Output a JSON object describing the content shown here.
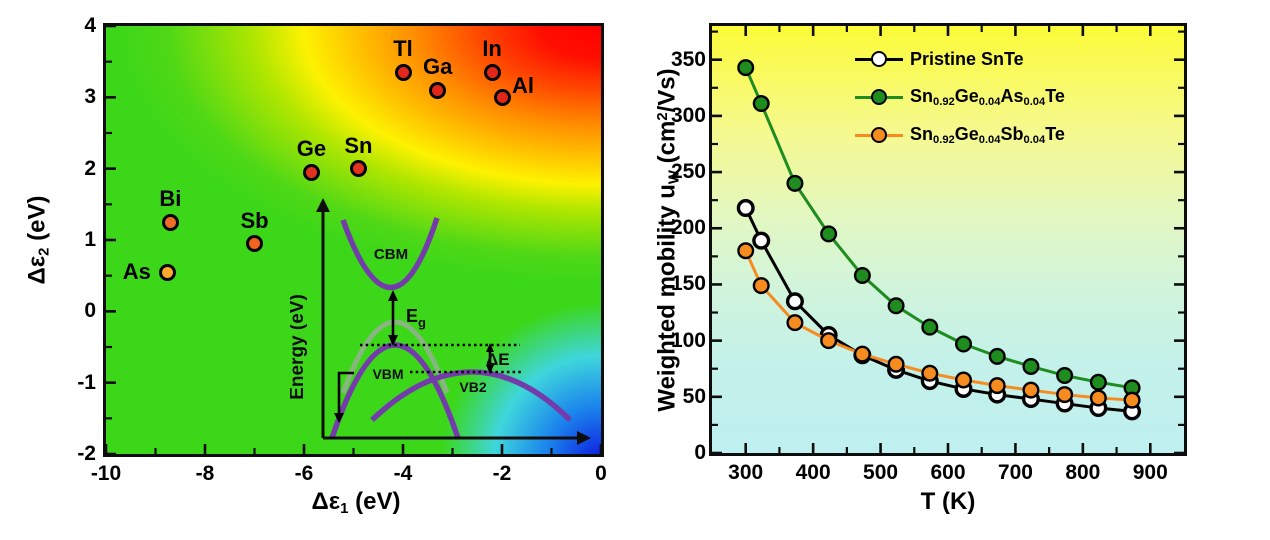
{
  "chart_data": [
    {
      "type": "scatter",
      "panel": "dopant-energy-map",
      "xlabel_parts": [
        {
          "t": "Δε"
        },
        {
          "t": "1",
          "s": "sub"
        },
        {
          "t": " (eV)"
        }
      ],
      "ylabel_parts": [
        {
          "t": "Δε"
        },
        {
          "t": "2",
          "s": "sub"
        },
        {
          "t": " (eV)"
        }
      ],
      "xlim": [
        -10,
        0
      ],
      "ylim": [
        -2,
        4
      ],
      "xticks": [
        -10,
        -8,
        -6,
        -4,
        -2,
        0
      ],
      "yticks": [
        -2,
        -1,
        0,
        1,
        2,
        3,
        4
      ],
      "minor_xticks": [
        -9,
        -7,
        -5,
        -3,
        -1
      ],
      "minor_yticks": [
        -1.5,
        -0.5,
        0.5,
        1.5,
        2.5,
        3.5
      ],
      "grid": false,
      "background_colors": {
        "base_green": "#3cd719",
        "hot_corner": [
          "#ff0000",
          "#ff8c00",
          "#ffc400",
          "#fdf200",
          "#b0e600"
        ],
        "cold_corner": [
          "#0c17e0",
          "#1c86ec",
          "#3ed6dc"
        ]
      },
      "points": [
        {
          "label": "As",
          "x": -8.75,
          "y": 0.55,
          "fill": "#FAAA2D",
          "label_pos": "left"
        },
        {
          "label": "Bi",
          "x": -8.7,
          "y": 1.25,
          "fill": "#ED6E28",
          "label_pos": "above"
        },
        {
          "label": "Sb",
          "x": -7.0,
          "y": 0.95,
          "fill": "#EE6420",
          "label_pos": "above"
        },
        {
          "label": "Ge",
          "x": -5.85,
          "y": 1.95,
          "fill": "#E1331E",
          "label_pos": "above"
        },
        {
          "label": "Sn",
          "x": -4.9,
          "y": 2.0,
          "fill": "#E1331E",
          "label_pos": "above"
        },
        {
          "label": "Tl",
          "x": -4.0,
          "y": 3.35,
          "fill": "#E2271A",
          "label_pos": "above"
        },
        {
          "label": "Ga",
          "x": -3.3,
          "y": 3.1,
          "fill": "#E2271A",
          "label_pos": "above"
        },
        {
          "label": "In",
          "x": -2.2,
          "y": 3.35,
          "fill": "#E2271A",
          "label_pos": "above"
        },
        {
          "label": "Al",
          "x": -2.0,
          "y": 3.0,
          "fill": "#E2271A",
          "label_pos": "right-up"
        }
      ],
      "inset": {
        "ylabel": "Energy (eV)",
        "cbm": "CBM",
        "eg_main": "E",
        "eg_sub": "g",
        "vbm": "VBM",
        "vb2": "VB2",
        "delta_e": "ΔE",
        "curve_color": "#733CAA",
        "ghost_color": "#96AF96"
      }
    },
    {
      "type": "line",
      "panel": "weighted-mobility-vs-temperature",
      "xlabel": "T (K)",
      "ylabel_parts": [
        {
          "t": "Weighted mobility u"
        },
        {
          "t": "W",
          "s": "sub"
        },
        {
          "t": " (cm"
        },
        {
          "t": "2",
          "s": "sup"
        },
        {
          "t": "/Vs)"
        }
      ],
      "xlim": [
        250,
        950
      ],
      "ylim": [
        0,
        380
      ],
      "xticks": [
        300,
        400,
        500,
        600,
        700,
        800,
        900
      ],
      "yticks": [
        0,
        50,
        100,
        150,
        200,
        250,
        300,
        350
      ],
      "minor_xticks": [
        350,
        450,
        550,
        650,
        750,
        850
      ],
      "minor_yticks": [
        25,
        75,
        125,
        175,
        225,
        275,
        325,
        375
      ],
      "grid": false,
      "legend_position": "top-right",
      "x": [
        300,
        323,
        373,
        423,
        473,
        523,
        573,
        623,
        673,
        723,
        773,
        823,
        873
      ],
      "series": [
        {
          "name": "Pristine SnTe",
          "name_parts": [
            {
              "t": "Pristine SnTe"
            }
          ],
          "color": "#000000",
          "marker_fill": "#FFFFFF",
          "marker_open": true,
          "values": [
            218,
            189,
            135,
            105,
            87,
            74,
            64,
            57,
            52,
            48,
            44,
            40,
            37
          ]
        },
        {
          "name": "Sn0.92Ge0.04As0.04Te",
          "name_parts": [
            {
              "t": "Sn"
            },
            {
              "t": "0.92",
              "s": "sub"
            },
            {
              "t": "Ge"
            },
            {
              "t": "0.04",
              "s": "sub"
            },
            {
              "t": "As"
            },
            {
              "t": "0.04",
              "s": "sub"
            },
            {
              "t": "Te"
            }
          ],
          "color": "#1E8C1E",
          "marker_fill": "#1E8C1E",
          "marker_open": false,
          "values": [
            343,
            311,
            240,
            195,
            158,
            131,
            112,
            97,
            86,
            77,
            69,
            63,
            58
          ]
        },
        {
          "name": "Sn0.92Ge0.04Sb0.04Te",
          "name_parts": [
            {
              "t": "Sn"
            },
            {
              "t": "0.92",
              "s": "sub"
            },
            {
              "t": "Ge"
            },
            {
              "t": "0.04",
              "s": "sub"
            },
            {
              "t": "Sb"
            },
            {
              "t": "0.04",
              "s": "sub"
            },
            {
              "t": "Te"
            }
          ],
          "color": "#F68B1F",
          "marker_fill": "#F68B1F",
          "marker_open": false,
          "values": [
            180,
            149,
            116,
            100,
            88,
            79,
            71,
            65,
            60,
            56,
            52,
            49,
            47
          ]
        }
      ]
    }
  ]
}
